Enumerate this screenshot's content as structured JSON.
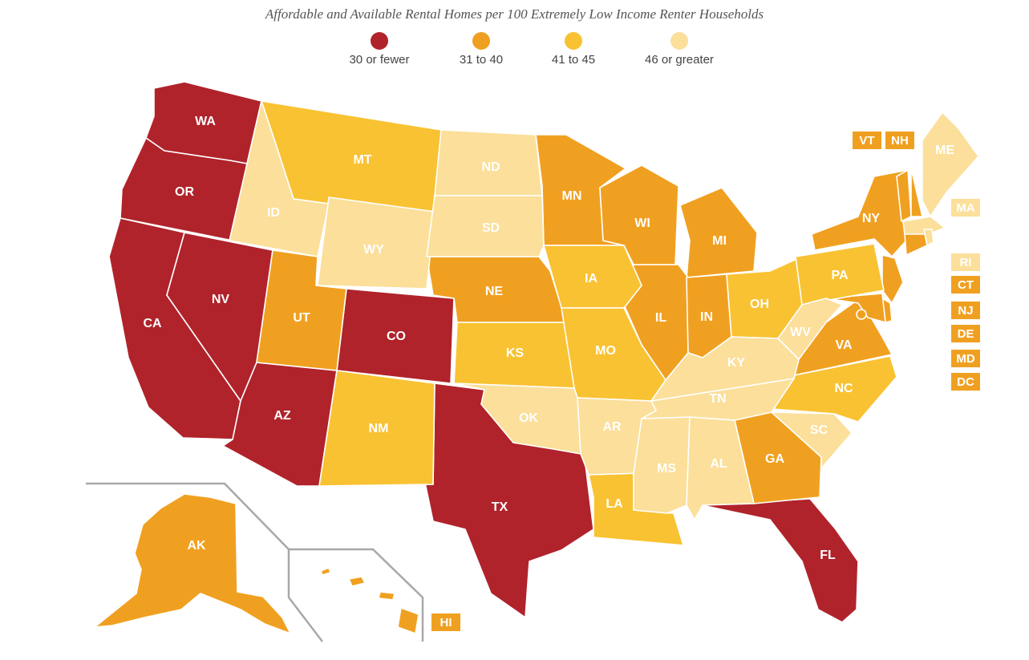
{
  "title": "Affordable and Available Rental Homes per 100 Extremely Low Income Renter Households",
  "colors": {
    "c1": "#b0232b",
    "c2": "#f0a020",
    "c3": "#f9c232",
    "c4": "#fbdf9a"
  },
  "legend": [
    {
      "label": "30 or fewer",
      "color_key": "c1"
    },
    {
      "label": "31 to 40",
      "color_key": "c2"
    },
    {
      "label": "41 to 45",
      "color_key": "c3"
    },
    {
      "label": "46 or greater",
      "color_key": "c4"
    }
  ],
  "states": [
    {
      "abbr": "WA",
      "category": "c1"
    },
    {
      "abbr": "OR",
      "category": "c1"
    },
    {
      "abbr": "CA",
      "category": "c1"
    },
    {
      "abbr": "NV",
      "category": "c1"
    },
    {
      "abbr": "AZ",
      "category": "c1"
    },
    {
      "abbr": "CO",
      "category": "c1"
    },
    {
      "abbr": "TX",
      "category": "c1"
    },
    {
      "abbr": "FL",
      "category": "c1"
    },
    {
      "abbr": "UT",
      "category": "c2"
    },
    {
      "abbr": "NE",
      "category": "c2"
    },
    {
      "abbr": "MN",
      "category": "c2"
    },
    {
      "abbr": "WI",
      "category": "c2"
    },
    {
      "abbr": "MI",
      "category": "c2"
    },
    {
      "abbr": "IL",
      "category": "c2"
    },
    {
      "abbr": "IN",
      "category": "c2"
    },
    {
      "abbr": "NY",
      "category": "c2"
    },
    {
      "abbr": "VA",
      "category": "c2"
    },
    {
      "abbr": "GA",
      "category": "c2"
    },
    {
      "abbr": "AK",
      "category": "c2"
    },
    {
      "abbr": "HI",
      "category": "c2"
    },
    {
      "abbr": "VT",
      "category": "c2"
    },
    {
      "abbr": "NH",
      "category": "c2"
    },
    {
      "abbr": "CT",
      "category": "c2"
    },
    {
      "abbr": "NJ",
      "category": "c2"
    },
    {
      "abbr": "DE",
      "category": "c2"
    },
    {
      "abbr": "MD",
      "category": "c2"
    },
    {
      "abbr": "DC",
      "category": "c2"
    },
    {
      "abbr": "MT",
      "category": "c3"
    },
    {
      "abbr": "NM",
      "category": "c3"
    },
    {
      "abbr": "KS",
      "category": "c3"
    },
    {
      "abbr": "IA",
      "category": "c3"
    },
    {
      "abbr": "MO",
      "category": "c3"
    },
    {
      "abbr": "LA",
      "category": "c3"
    },
    {
      "abbr": "OH",
      "category": "c3"
    },
    {
      "abbr": "PA",
      "category": "c3"
    },
    {
      "abbr": "NC",
      "category": "c3"
    },
    {
      "abbr": "ID",
      "category": "c4"
    },
    {
      "abbr": "WY",
      "category": "c4"
    },
    {
      "abbr": "ND",
      "category": "c4"
    },
    {
      "abbr": "SD",
      "category": "c4"
    },
    {
      "abbr": "OK",
      "category": "c4"
    },
    {
      "abbr": "AR",
      "category": "c4"
    },
    {
      "abbr": "MS",
      "category": "c4"
    },
    {
      "abbr": "AL",
      "category": "c4"
    },
    {
      "abbr": "TN",
      "category": "c4"
    },
    {
      "abbr": "KY",
      "category": "c4"
    },
    {
      "abbr": "WV",
      "category": "c4"
    },
    {
      "abbr": "SC",
      "category": "c4"
    },
    {
      "abbr": "ME",
      "category": "c4"
    },
    {
      "abbr": "MA",
      "category": "c4"
    },
    {
      "abbr": "RI",
      "category": "c4"
    }
  ]
}
